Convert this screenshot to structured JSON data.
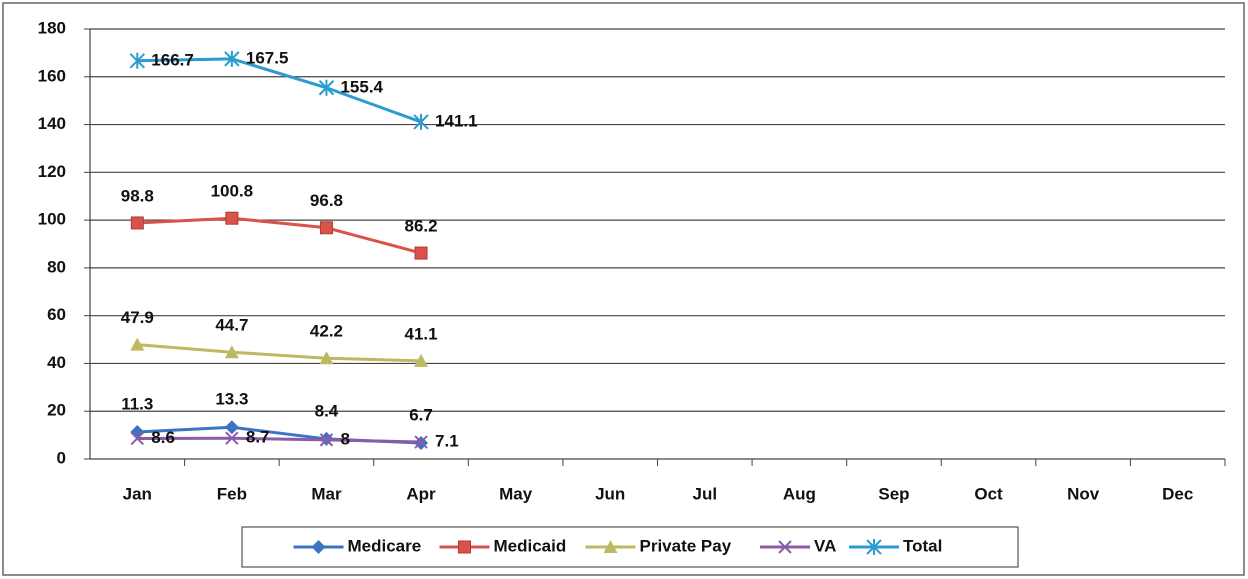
{
  "chart_data": {
    "type": "line",
    "categories": [
      "Jan",
      "Feb",
      "Mar",
      "Apr",
      "May",
      "Jun",
      "Jul",
      "Aug",
      "Sep",
      "Oct",
      "Nov",
      "Dec"
    ],
    "series": [
      {
        "name": "Medicare",
        "color": "#3a74c2",
        "values": [
          11.3,
          13.3,
          8.4,
          6.7,
          null,
          null,
          null,
          null,
          null,
          null,
          null,
          null
        ]
      },
      {
        "name": "Medicaid",
        "color": "#d9534a",
        "values": [
          98.8,
          100.8,
          96.8,
          86.2,
          null,
          null,
          null,
          null,
          null,
          null,
          null,
          null
        ]
      },
      {
        "name": "Private Pay",
        "color": "#bdb862",
        "values": [
          47.9,
          44.7,
          42.2,
          41.1,
          null,
          null,
          null,
          null,
          null,
          null,
          null,
          null
        ]
      },
      {
        "name": "VA",
        "color": "#8a5ca8",
        "values": [
          8.6,
          8.7,
          8.0,
          7.1,
          null,
          null,
          null,
          null,
          null,
          null,
          null,
          null
        ]
      },
      {
        "name": "Total",
        "color": "#2b9bd0",
        "values": [
          166.7,
          167.5,
          155.4,
          141.1,
          null,
          null,
          null,
          null,
          null,
          null,
          null,
          null
        ]
      }
    ],
    "ylim": [
      0,
      180
    ],
    "yticks": [
      0,
      20,
      40,
      60,
      80,
      100,
      120,
      140,
      160,
      180
    ],
    "grid": true,
    "legend": "bottom"
  }
}
